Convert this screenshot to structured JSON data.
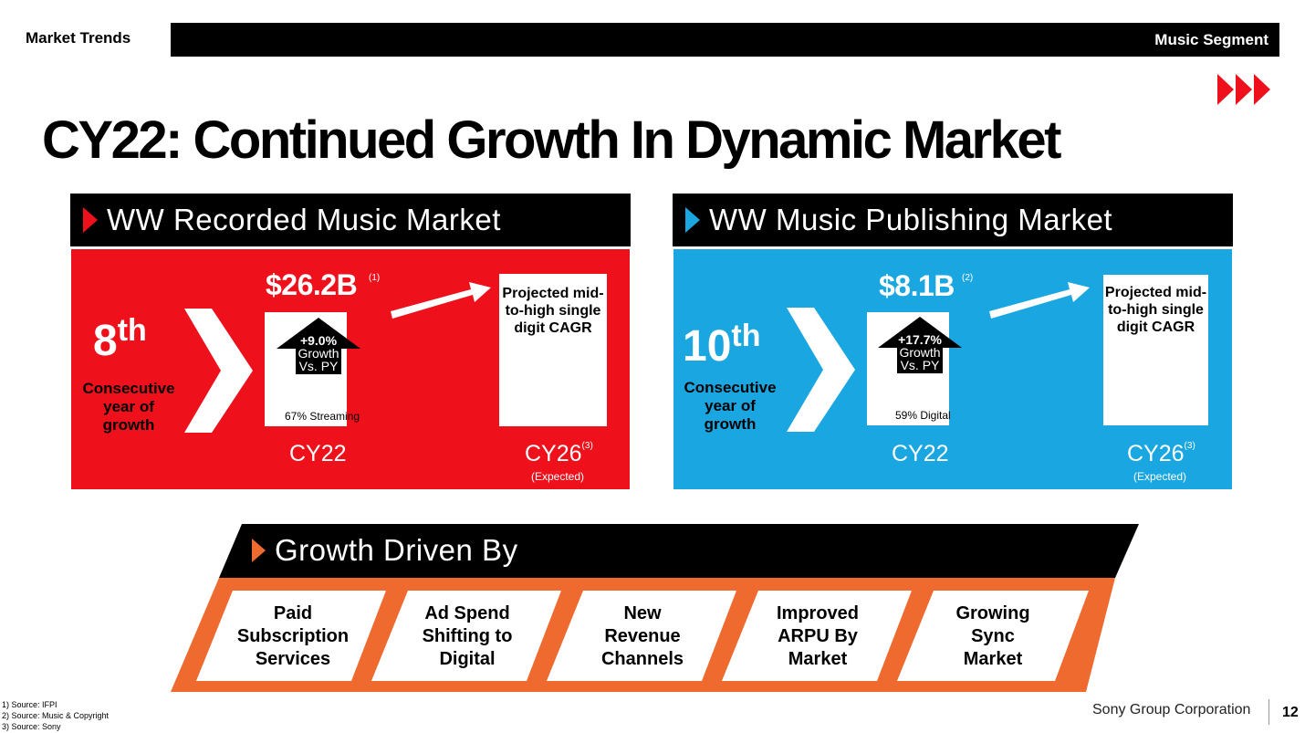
{
  "header": {
    "section": "Market Trends",
    "segment": "Music Segment"
  },
  "title": "CY22: Continued Growth In Dynamic Market",
  "colors": {
    "red": "#ee111b",
    "blue": "#19a6e1",
    "orange": "#ee6a2f",
    "black": "#000000"
  },
  "recorded": {
    "heading": "WW Recorded Music Market",
    "ordinal_num": "8",
    "ordinal_suffix": "th",
    "consecutive_line1": "Consecutive",
    "consecutive_line2": "year of growth",
    "amount": "$26.2B",
    "amount_note": "(1)",
    "growth_value": "+9.0%",
    "growth_line2": "Growth",
    "growth_line3": "Vs. PY",
    "bar_caption": "67% Streaming",
    "projection_line1": "Projected mid-",
    "projection_line2": "to-high single",
    "projection_line3": "digit CAGR",
    "cy_current": "CY22",
    "cy_future": "CY26",
    "cy_future_note": "(3)",
    "expected": "(Expected)"
  },
  "publishing": {
    "heading": "WW Music Publishing Market",
    "ordinal_num": "10",
    "ordinal_suffix": "th",
    "consecutive_line1": "Consecutive",
    "consecutive_line2": "year of growth",
    "amount": "$8.1B",
    "amount_note": "(2)",
    "growth_value": "+17.7%",
    "growth_line2": "Growth",
    "growth_line3": "Vs. PY",
    "bar_caption": "59% Digital",
    "projection_line1": "Projected mid-",
    "projection_line2": "to-high single",
    "projection_line3": "digit CAGR",
    "cy_current": "CY22",
    "cy_future": "CY26",
    "cy_future_note": "(3)",
    "expected": "(Expected)"
  },
  "growth_driven": {
    "heading": "Growth Driven By",
    "drivers": [
      {
        "line1": "Paid",
        "line2": "Subscription",
        "line3": "Services"
      },
      {
        "line1": "Ad Spend",
        "line2": "Shifting to",
        "line3": "Digital"
      },
      {
        "line1": "New",
        "line2": "Revenue",
        "line3": "Channels"
      },
      {
        "line1": "Improved",
        "line2": "ARPU By",
        "line3": "Market"
      },
      {
        "line1": "Growing",
        "line2": "Sync",
        "line3": "Market"
      }
    ]
  },
  "footnotes": [
    "1) Source:  IFPI",
    "2) Source:  Music & Copyright",
    "3) Source:  Sony"
  ],
  "footer": {
    "company": "Sony Group Corporation",
    "page": "12"
  }
}
